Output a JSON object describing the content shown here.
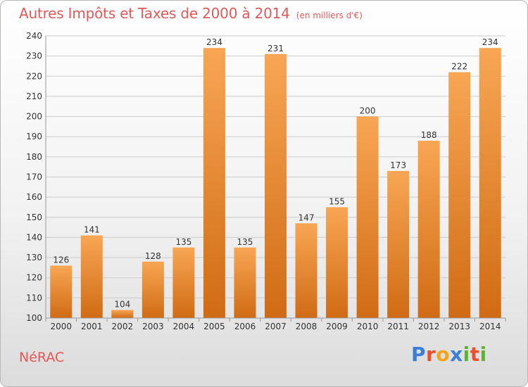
{
  "title": "Autres Impôts et Taxes de 2000 à 2014",
  "subtitle": "(en milliers d'€)",
  "commune": "NéRAC",
  "brand": {
    "letters": [
      "P",
      "r",
      "o",
      "x",
      "i",
      "t",
      "i"
    ],
    "colors": [
      "#3a7fd5",
      "#e8512c",
      "#f4a31b",
      "#3a7fd5",
      "#5cb531",
      "#e8512c",
      "#5cb531"
    ]
  },
  "colors": {
    "bar_top": "#f8a654",
    "bar_bottom": "#d06b14",
    "title": "#e05858",
    "grid": "#cccccc"
  },
  "chart_data": {
    "type": "bar",
    "categories": [
      "2000",
      "2001",
      "2002",
      "2003",
      "2004",
      "2005",
      "2006",
      "2007",
      "2008",
      "2009",
      "2010",
      "2011",
      "2012",
      "2013",
      "2014"
    ],
    "values": [
      126,
      141,
      104,
      128,
      135,
      234,
      135,
      231,
      147,
      155,
      200,
      173,
      188,
      222,
      234
    ],
    "ylim": [
      100,
      240
    ],
    "yticks": [
      100,
      110,
      120,
      130,
      140,
      150,
      160,
      170,
      180,
      190,
      200,
      210,
      220,
      230,
      240
    ],
    "grid": true,
    "data_labels": true
  }
}
